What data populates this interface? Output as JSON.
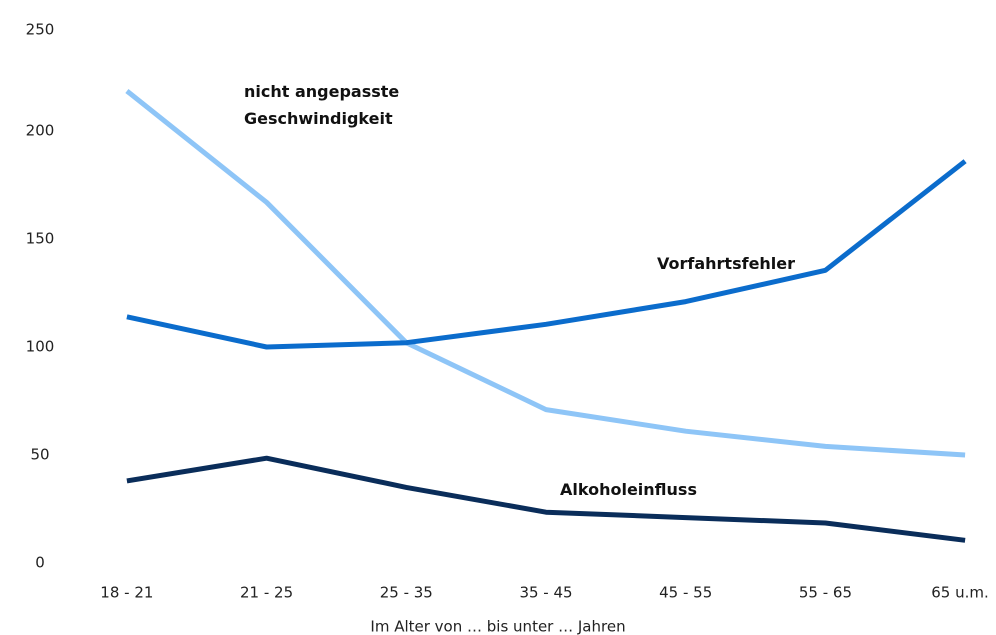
{
  "chart_data": {
    "type": "line",
    "x_label": "Im Alter von … bis unter … Jahren",
    "categories": [
      "18 - 21",
      "21 - 25",
      "25 - 35",
      "35 - 45",
      "45 - 55",
      "55 - 65",
      "65 u.m."
    ],
    "series": [
      {
        "name": "nicht angepasste Geschwindigkeit",
        "color": "#8ec5f7",
        "values": [
          218.5,
          167,
          102,
          71,
          61,
          54,
          50
        ]
      },
      {
        "name": "Vorfahrtsfehler",
        "color": "#0b6ccc",
        "values": [
          114,
          100,
          102,
          110.5,
          121,
          135.5,
          186
        ]
      },
      {
        "name": "Alkoholeinfluss",
        "color": "#0a2d5a",
        "values": [
          38,
          48.5,
          35,
          23.5,
          21,
          18.5,
          10.5
        ]
      }
    ],
    "ylim": [
      0,
      250
    ],
    "yticks": [
      0,
      50,
      100,
      150,
      200,
      250
    ],
    "grid": false
  }
}
